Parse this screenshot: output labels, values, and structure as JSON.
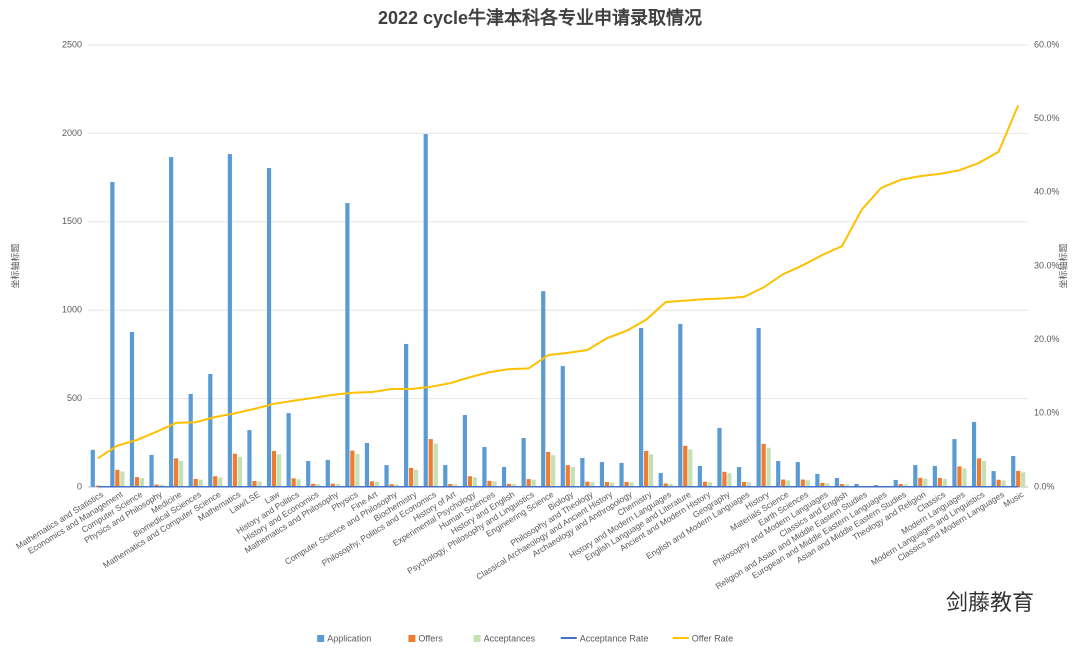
{
  "chart_data": {
    "type": "bar-line",
    "title": "2022 cycle牛津本科各专业申请录取情况",
    "y_label": "坐标轴标题",
    "y2_label": "坐标轴标题",
    "watermark": "剑藤教育",
    "categories": [
      "Mathematics and Statistics",
      "Economics and Management",
      "Computer Science",
      "Physics and Philosophy",
      "Medicine",
      "Biomedical Sciences",
      "Mathematics and Computer Science",
      "Mathematics",
      "Law/LSE",
      "Law",
      "History and Politics",
      "History and Economics",
      "Mathematics and Philosophy",
      "Physics",
      "Fine Art",
      "Computer Science and Philosophy",
      "Biochemistry",
      "Philosophy, Politics and Economics",
      "History of Art",
      "Experimental Psychology",
      "Human Sciences",
      "History and English",
      "Psychology, Philosophy and Linguistics",
      "Engineering Science",
      "Biology",
      "Philosophy and Theology",
      "Classical Archaeology and Ancient History",
      "Archaeology and Anthropology",
      "Chemistry",
      "History and Modern Languages",
      "English Language and Literature",
      "Ancient and Modern History",
      "Geography",
      "English and Modern Languages",
      "History",
      "Materials Science",
      "Earth Sciences",
      "Philosophy and Modern Languages",
      "Classics and English",
      "Religion and Asian and Middle Eastern Studies",
      "European and Middle Eastern Languages",
      "Asian and Middle Eastern Studies",
      "Theology and Religion",
      "Classics",
      "Modern Languages",
      "Modern Languages and Linguistics",
      "Classics and Modern Languages",
      "Music"
    ],
    "series": [
      {
        "name": "Application",
        "kind": "bar",
        "color": "#5b9bd5",
        "values": [
          210,
          1725,
          877,
          181,
          1866,
          526,
          639,
          1883,
          322,
          1804,
          418,
          147,
          153,
          1606,
          249,
          124,
          809,
          1996,
          124,
          407,
          226,
          113,
          277,
          1108,
          684,
          164,
          141,
          136,
          899,
          79,
          922,
          119,
          334,
          113,
          899,
          147,
          141,
          74,
          51,
          17,
          11,
          40,
          124,
          119,
          271,
          368,
          90,
          175
        ]
      },
      {
        "name": "Offers",
        "kind": "bar",
        "color": "#ed7d31",
        "values": [
          8,
          97,
          56,
          14,
          162,
          46,
          61,
          188,
          34,
          204,
          49,
          18,
          19,
          206,
          32,
          16,
          108,
          271,
          17,
          61,
          35,
          18,
          45,
          198,
          124,
          30,
          28,
          29,
          204,
          20,
          233,
          30,
          86,
          29,
          244,
          42,
          42,
          23,
          17,
          6,
          4,
          17,
          52,
          51,
          117,
          162,
          41,
          91
        ]
      },
      {
        "name": "Acceptances",
        "kind": "bar",
        "color": "#c5e0b4",
        "values": [
          7,
          88,
          50,
          13,
          147,
          42,
          55,
          170,
          31,
          185,
          44,
          16,
          17,
          187,
          29,
          14,
          98,
          246,
          15,
          55,
          32,
          16,
          41,
          180,
          113,
          27,
          25,
          26,
          185,
          18,
          212,
          27,
          78,
          26,
          222,
          38,
          38,
          21,
          15,
          5,
          4,
          15,
          47,
          46,
          106,
          147,
          37,
          83
        ]
      },
      {
        "name": "Acceptance Rate",
        "kind": "line",
        "color": "#4472c4",
        "values": [
          0.9,
          0.9,
          0.9,
          0.9,
          0.9,
          0.9,
          0.9,
          0.9,
          0.9,
          0.9,
          0.9,
          0.9,
          0.9,
          0.9,
          0.9,
          0.9,
          0.9,
          0.9,
          0.9,
          0.9,
          0.9,
          0.9,
          0.9,
          0.9,
          0.9,
          0.9,
          0.9,
          0.9,
          0.9,
          0.9,
          0.9,
          0.9,
          0.9,
          0.9,
          0.9,
          0.9,
          0.9,
          0.9,
          0.9,
          0.9,
          0.9,
          0.9,
          0.9,
          0.9,
          0.9,
          0.9,
          0.9,
          0.9
        ]
      },
      {
        "name": "Offer Rate",
        "kind": "line",
        "axis": "y2",
        "color": "#ffc000",
        "values": [
          3.9,
          5.6,
          6.4,
          7.5,
          8.7,
          8.8,
          9.5,
          10.0,
          10.6,
          11.3,
          11.7,
          12.1,
          12.5,
          12.8,
          12.9,
          13.3,
          13.3,
          13.6,
          14.1,
          14.9,
          15.6,
          16.0,
          16.1,
          17.9,
          18.2,
          18.6,
          20.2,
          21.2,
          22.7,
          25.1,
          25.3,
          25.5,
          25.6,
          25.8,
          27.1,
          28.9,
          30.1,
          31.5,
          32.7,
          37.6,
          40.6,
          41.7,
          42.2,
          42.5,
          43.0,
          44.0,
          45.5,
          51.8
        ]
      }
    ],
    "ylim": [
      0,
      2500
    ],
    "yticks": [
      0,
      500,
      1000,
      1500,
      2000,
      2500
    ],
    "y2lim": [
      0,
      60
    ],
    "y2ticks": [
      {
        "value": 0,
        "label": "0.0%"
      },
      {
        "value": 10,
        "label": "10.0%"
      },
      {
        "value": 20,
        "label": "20.0%"
      },
      {
        "value": 30,
        "label": "30.0%"
      },
      {
        "value": 40,
        "label": "40.0%"
      },
      {
        "value": 50,
        "label": "50.0%"
      },
      {
        "value": 60,
        "label": "60.0%"
      }
    ],
    "legend": "bottom"
  }
}
